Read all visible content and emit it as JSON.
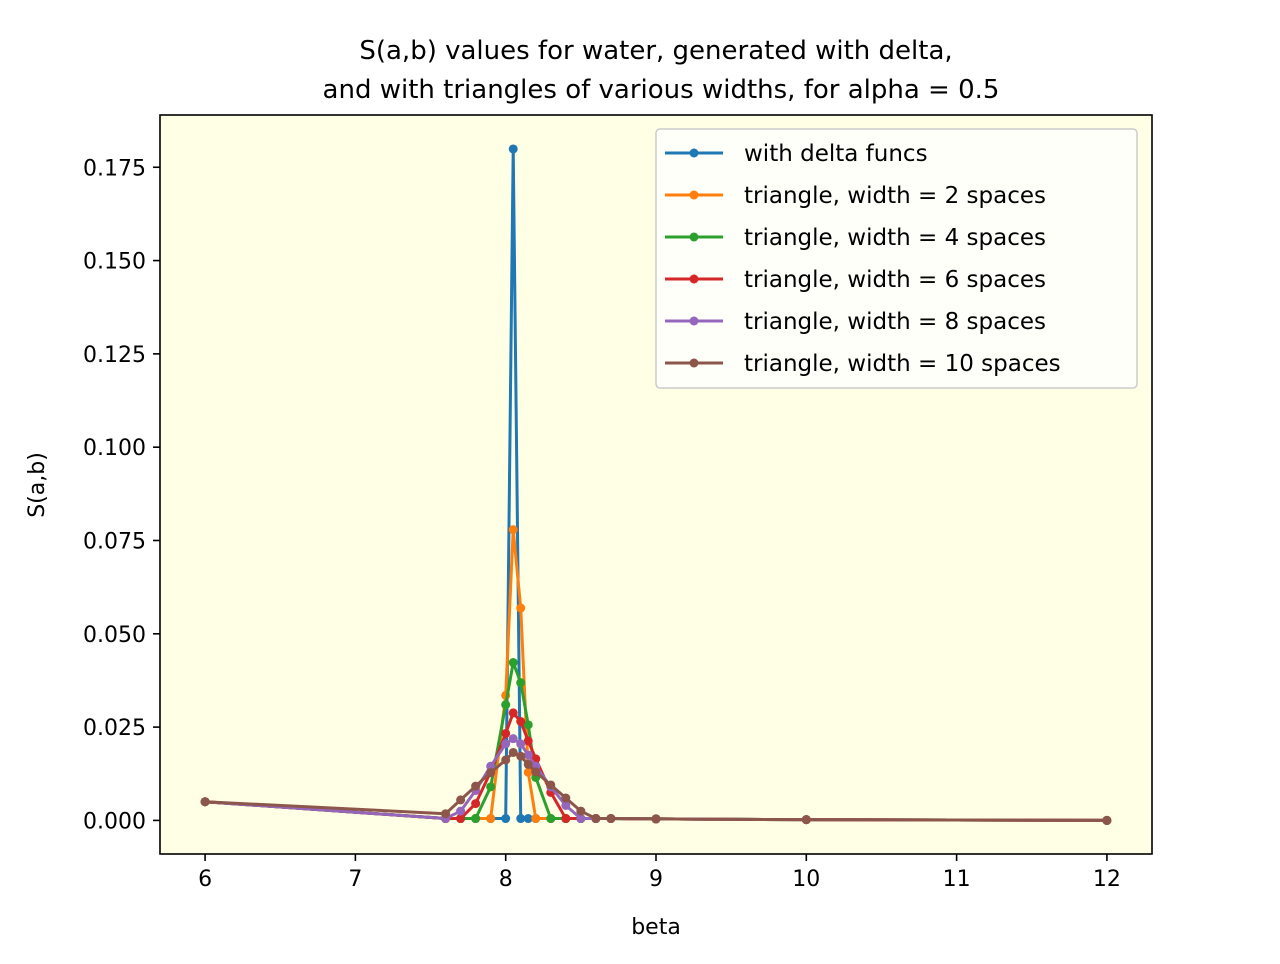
{
  "chart_data": {
    "type": "line",
    "title_lines": [
      "S(a,b) values for water, generated with delta,",
      "and with triangles of various widths, for alpha = 0.5"
    ],
    "xlabel": "beta",
    "ylabel": "S(a,b)",
    "xlim": [
      5.7,
      12.3
    ],
    "ylim": [
      -0.009,
      0.189
    ],
    "x_ticks": [
      6,
      7,
      8,
      9,
      10,
      11,
      12
    ],
    "x_tick_labels": [
      "6",
      "7",
      "8",
      "9",
      "10",
      "11",
      "12"
    ],
    "y_ticks": [
      0.0,
      0.025,
      0.05,
      0.075,
      0.1,
      0.125,
      0.15,
      0.175
    ],
    "y_tick_labels": [
      "0.000",
      "0.025",
      "0.050",
      "0.075",
      "0.100",
      "0.125",
      "0.150",
      "0.175"
    ],
    "plot_background": "#ffffe6",
    "legend_position": "top-right",
    "series": [
      {
        "name": "with delta funcs",
        "color": "#1f77b4",
        "x": [
          6,
          7.6,
          7.7,
          7.8,
          7.9,
          8.0,
          8.05,
          8.1,
          8.15,
          8.2,
          8.3,
          8.4,
          8.5,
          8.6,
          8.7,
          9,
          10,
          12
        ],
        "y": [
          0.005,
          0.0005,
          0.0005,
          0.0005,
          0.0005,
          0.0005,
          0.1799,
          0.0005,
          0.0005,
          0.0005,
          0.0005,
          0.0005,
          0.0005,
          0.0005,
          0.0005,
          0.0004,
          0.0002,
          0.0
        ]
      },
      {
        "name": "triangle, width = 2 spaces",
        "color": "#ff7f0e",
        "x": [
          6,
          7.6,
          7.7,
          7.8,
          7.9,
          8.0,
          8.05,
          8.1,
          8.15,
          8.2,
          8.3,
          8.4,
          8.5,
          8.6,
          8.7,
          9,
          10,
          12
        ],
        "y": [
          0.005,
          0.0005,
          0.0005,
          0.0005,
          0.0005,
          0.0335,
          0.0779,
          0.0569,
          0.0129,
          0.0005,
          0.0005,
          0.0005,
          0.0005,
          0.0005,
          0.0005,
          0.0004,
          0.0002,
          0.0
        ]
      },
      {
        "name": "triangle, width = 4 spaces",
        "color": "#2ca02c",
        "x": [
          6,
          7.6,
          7.7,
          7.8,
          7.9,
          8.0,
          8.05,
          8.1,
          8.15,
          8.2,
          8.3,
          8.4,
          8.5,
          8.6,
          8.7,
          9,
          10,
          12
        ],
        "y": [
          0.005,
          0.0005,
          0.0005,
          0.0005,
          0.009,
          0.031,
          0.0423,
          0.0369,
          0.0256,
          0.0115,
          0.0005,
          0.0005,
          0.0005,
          0.0005,
          0.0005,
          0.0004,
          0.0002,
          0.0
        ]
      },
      {
        "name": "triangle, width = 6 spaces",
        "color": "#d62728",
        "x": [
          6,
          7.6,
          7.7,
          7.8,
          7.9,
          8.0,
          8.05,
          8.1,
          8.15,
          8.2,
          8.3,
          8.4,
          8.5,
          8.6,
          8.7,
          9,
          10,
          12
        ],
        "y": [
          0.005,
          0.0005,
          0.0005,
          0.0045,
          0.013,
          0.0233,
          0.0288,
          0.0265,
          0.0213,
          0.0165,
          0.0075,
          0.0005,
          0.0005,
          0.0005,
          0.0005,
          0.0004,
          0.0002,
          0.0
        ]
      },
      {
        "name": "triangle, width = 8 spaces",
        "color": "#9467bd",
        "x": [
          6,
          7.6,
          7.7,
          7.8,
          7.9,
          8.0,
          8.05,
          8.1,
          8.15,
          8.2,
          8.3,
          8.4,
          8.5,
          8.6,
          8.7,
          9,
          10,
          12
        ],
        "y": [
          0.005,
          0.0005,
          0.0025,
          0.008,
          0.0145,
          0.0205,
          0.0219,
          0.0205,
          0.0175,
          0.0145,
          0.009,
          0.004,
          0.0005,
          0.0005,
          0.0005,
          0.0004,
          0.0002,
          0.0
        ]
      },
      {
        "name": "triangle, width = 10 spaces",
        "color": "#8c564b",
        "x": [
          6,
          7.6,
          7.7,
          7.8,
          7.9,
          8.0,
          8.05,
          8.1,
          8.15,
          8.2,
          8.3,
          8.4,
          8.5,
          8.6,
          8.7,
          9,
          10,
          12
        ],
        "y": [
          0.005,
          0.0018,
          0.0055,
          0.0092,
          0.0128,
          0.0162,
          0.0182,
          0.0172,
          0.015,
          0.013,
          0.0095,
          0.006,
          0.0025,
          0.0005,
          0.0005,
          0.0004,
          0.0002,
          0.0
        ]
      }
    ]
  }
}
